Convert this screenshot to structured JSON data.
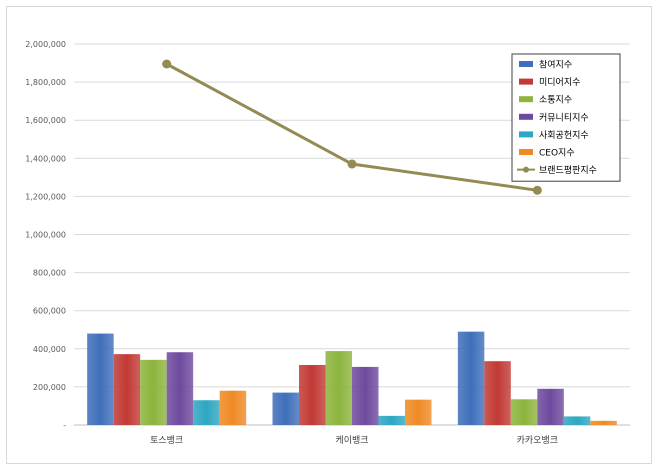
{
  "chart_data": {
    "type": "bar",
    "categories": [
      "토스뱅크",
      "케이뱅크",
      "카카오뱅크"
    ],
    "series": [
      {
        "name": "참여지수",
        "kind": "bar",
        "color": "#3f6fba",
        "values": [
          480000,
          170000,
          490000
        ]
      },
      {
        "name": "미디어지수",
        "kind": "bar",
        "color": "#c23a35",
        "values": [
          372000,
          315000,
          335000
        ]
      },
      {
        "name": "소통지수",
        "kind": "bar",
        "color": "#8db43d",
        "values": [
          342000,
          388000,
          135000
        ]
      },
      {
        "name": "커뮤니티지수",
        "kind": "bar",
        "color": "#6e4a9e",
        "values": [
          382000,
          305000,
          190000
        ]
      },
      {
        "name": "사회공헌지수",
        "kind": "bar",
        "color": "#2ea7c2",
        "values": [
          130000,
          48000,
          45000
        ]
      },
      {
        "name": "CEO지수",
        "kind": "bar",
        "color": "#ef8a25",
        "values": [
          180000,
          133000,
          22000
        ]
      },
      {
        "name": "브랜드평판지수",
        "kind": "line",
        "color": "#948a54",
        "values": [
          1895000,
          1370000,
          1232000
        ]
      }
    ],
    "ylim": [
      0,
      2000000
    ],
    "yticks": [
      {
        "value": 0,
        "label": "-"
      },
      {
        "value": 200000,
        "label": "200,000"
      },
      {
        "value": 400000,
        "label": "400,000"
      },
      {
        "value": 600000,
        "label": "600,000"
      },
      {
        "value": 800000,
        "label": "800,000"
      },
      {
        "value": 1000000,
        "label": "1,000,000"
      },
      {
        "value": 1200000,
        "label": "1,200,000"
      },
      {
        "value": 1400000,
        "label": "1,400,000"
      },
      {
        "value": 1600000,
        "label": "1,600,000"
      },
      {
        "value": 1800000,
        "label": "1,800,000"
      },
      {
        "value": 2000000,
        "label": "2,000,000"
      }
    ],
    "grid": true,
    "legend": "top-right"
  }
}
